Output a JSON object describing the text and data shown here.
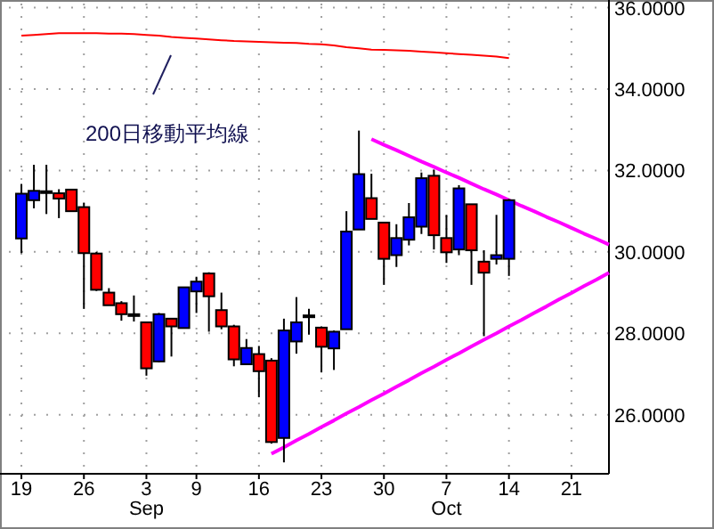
{
  "chart_data": {
    "type": "candlestick",
    "categories": [
      "19",
      null,
      null,
      null,
      null,
      "26",
      null,
      null,
      null,
      null,
      "3\nSep",
      null,
      null,
      null,
      "9",
      null,
      null,
      null,
      null,
      "16",
      null,
      null,
      null,
      null,
      "23",
      null,
      null,
      null,
      null,
      "30",
      null,
      null,
      null,
      null,
      "7\nOct",
      null,
      null,
      null,
      null,
      "14",
      null,
      null,
      null,
      null,
      "21",
      null,
      null,
      null
    ],
    "ohlc": [
      [
        30.33,
        31.67,
        29.97,
        31.43
      ],
      [
        31.27,
        32.14,
        31.07,
        31.5
      ],
      [
        31.49,
        32.14,
        30.93,
        31.49
      ],
      [
        31.44,
        31.54,
        30.83,
        31.31
      ],
      [
        31.53,
        31.53,
        31.0,
        31.0
      ],
      [
        31.1,
        31.21,
        28.6,
        29.97
      ],
      [
        29.96,
        30.0,
        29.04,
        29.07
      ],
      [
        29.0,
        29.11,
        28.69,
        28.69
      ],
      [
        28.74,
        28.79,
        28.31,
        28.47
      ],
      [
        28.47,
        28.93,
        28.29,
        28.47
      ],
      [
        28.27,
        28.27,
        26.96,
        27.14
      ],
      [
        27.31,
        28.5,
        27.29,
        28.47
      ],
      [
        28.36,
        28.36,
        27.43,
        28.17
      ],
      [
        28.13,
        29.13,
        28.13,
        29.13
      ],
      [
        29.03,
        29.39,
        28.5,
        29.27
      ],
      [
        29.47,
        29.5,
        28.04,
        28.91
      ],
      [
        28.57,
        29.0,
        28.1,
        28.17
      ],
      [
        28.17,
        28.21,
        27.19,
        27.36
      ],
      [
        27.24,
        27.86,
        27.24,
        27.64
      ],
      [
        27.49,
        27.69,
        26.43,
        27.07
      ],
      [
        27.33,
        27.39,
        25.29,
        25.33
      ],
      [
        25.43,
        28.36,
        24.83,
        28.07
      ],
      [
        27.8,
        28.89,
        27.5,
        28.27
      ],
      [
        28.44,
        28.6,
        27.97,
        28.44
      ],
      [
        28.14,
        28.17,
        27.04,
        27.67
      ],
      [
        27.63,
        28.07,
        27.1,
        28.04
      ],
      [
        28.1,
        31.0,
        28.1,
        30.5
      ],
      [
        30.55,
        32.98,
        30.55,
        31.91
      ],
      [
        31.32,
        31.92,
        30.81,
        30.81
      ],
      [
        30.72,
        30.72,
        29.19,
        29.83
      ],
      [
        29.92,
        30.68,
        29.63,
        30.34
      ],
      [
        30.3,
        31.2,
        30.16,
        30.85
      ],
      [
        30.62,
        31.95,
        30.44,
        31.81
      ],
      [
        31.87,
        32.02,
        30.06,
        30.41
      ],
      [
        30.34,
        30.91,
        29.73,
        29.99
      ],
      [
        30.06,
        31.64,
        29.92,
        31.56
      ],
      [
        31.17,
        31.17,
        29.19,
        30.04
      ],
      [
        29.76,
        30.04,
        27.93,
        29.49
      ],
      [
        29.83,
        30.91,
        29.69,
        29.92
      ],
      [
        29.83,
        31.3,
        29.41,
        31.27
      ],
      null,
      null,
      null,
      null,
      null,
      null,
      null,
      null
    ],
    "colors": [
      "#0000ff",
      "#0000ff",
      "#000000",
      "#ff0000",
      "#ff0000",
      "#ff0000",
      "#ff0000",
      "#ff0000",
      "#ff0000",
      "#000000",
      "#ff0000",
      "#0000ff",
      "#ff0000",
      "#0000ff",
      "#0000ff",
      "#ff0000",
      "#ff0000",
      "#ff0000",
      "#0000ff",
      "#ff0000",
      "#ff0000",
      "#0000ff",
      "#0000ff",
      "#000000",
      "#ff0000",
      "#0000ff",
      "#0000ff",
      "#0000ff",
      "#ff0000",
      "#ff0000",
      "#0000ff",
      "#0000ff",
      "#0000ff",
      "#ff0000",
      "#ff0000",
      "#0000ff",
      "#ff0000",
      "#ff0000",
      "#0000ff",
      "#0000ff",
      null,
      null,
      null,
      null,
      null,
      null,
      null,
      null
    ],
    "series": [
      {
        "type": "line",
        "color": "#ff0000",
        "values": [
          35.31,
          35.33,
          35.35,
          35.37,
          35.37,
          35.37,
          35.37,
          35.36,
          35.36,
          35.35,
          35.33,
          35.31,
          35.28,
          35.26,
          35.24,
          35.22,
          35.2,
          35.18,
          35.17,
          35.16,
          35.15,
          35.14,
          35.13,
          35.11,
          35.1,
          35.07,
          35.03,
          35.0,
          34.97,
          34.96,
          34.95,
          34.94,
          34.92,
          34.9,
          34.88,
          34.86,
          34.84,
          34.82,
          34.8,
          34.76,
          null,
          null,
          null,
          null,
          null,
          null,
          null,
          null
        ]
      },
      {
        "type": "line",
        "color": "#ff00ff",
        "values": [
          null,
          null,
          null,
          null,
          null,
          null,
          null,
          null,
          null,
          null,
          null,
          null,
          null,
          null,
          null,
          null,
          null,
          null,
          null,
          null,
          null,
          null,
          null,
          null,
          null,
          null,
          null,
          null,
          32.77,
          32.63,
          32.5,
          32.36,
          32.22,
          32.09,
          31.95,
          31.82,
          31.68,
          31.54,
          31.41,
          31.27,
          31.13,
          31.0,
          30.86,
          30.73,
          30.59,
          30.45,
          30.32,
          30.18
        ]
      },
      {
        "type": "line",
        "color": "#ff00ff",
        "values": [
          null,
          null,
          null,
          null,
          null,
          null,
          null,
          null,
          null,
          null,
          null,
          null,
          null,
          null,
          null,
          null,
          null,
          null,
          null,
          null,
          25.04,
          25.2,
          25.37,
          25.53,
          25.7,
          25.86,
          26.03,
          26.19,
          26.36,
          26.52,
          26.69,
          26.85,
          27.02,
          27.18,
          27.35,
          27.51,
          27.68,
          27.84,
          28.0,
          28.17,
          28.33,
          28.5,
          28.66,
          28.83,
          28.99,
          29.16,
          29.32,
          29.49
        ]
      }
    ],
    "annotations": [
      "200日移動平均線"
    ],
    "ylim": [
      24.55,
      36.1
    ],
    "yticks": [
      {
        "value": 26,
        "label": "26.0000"
      },
      {
        "value": 28,
        "label": "28.0000"
      },
      {
        "value": 30,
        "label": "30.0000"
      },
      {
        "value": 32,
        "label": "32.0000"
      },
      {
        "value": 34,
        "label": "34.0000"
      },
      {
        "value": 36,
        "label": "36.0000"
      }
    ],
    "grid": true
  }
}
